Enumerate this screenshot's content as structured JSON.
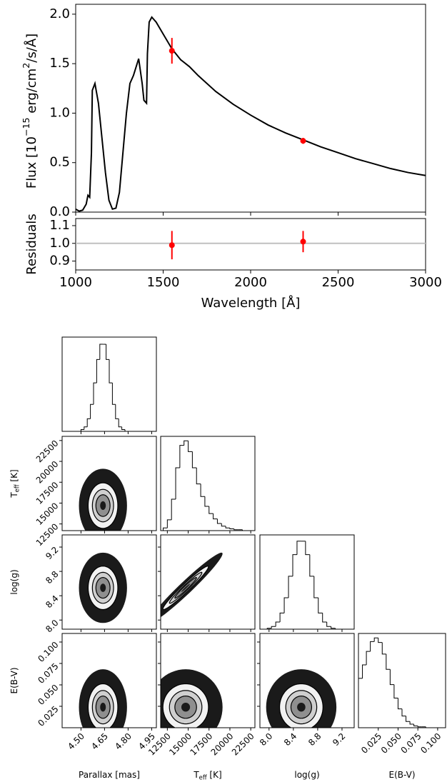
{
  "chart_data": [
    {
      "type": "line",
      "ylabel": [
        "Flux [10",
        {
          "sup": "−15"
        },
        " erg/cm",
        {
          "sup": "2"
        },
        "/s/Å]"
      ],
      "x": [
        1000,
        1020,
        1040,
        1060,
        1070,
        1080,
        1090,
        1095,
        1110,
        1130,
        1150,
        1170,
        1190,
        1210,
        1230,
        1250,
        1270,
        1290,
        1310,
        1330,
        1360,
        1380,
        1390,
        1405,
        1410,
        1420,
        1435,
        1460,
        1500,
        1550,
        1600,
        1650,
        1700,
        1800,
        1900,
        2000,
        2100,
        2200,
        2300,
        2400,
        2500,
        2600,
        2700,
        2800,
        2900,
        3000
      ],
      "series": [
        {
          "color": "#000000",
          "values": [
            0.03,
            0.01,
            0.02,
            0.08,
            0.17,
            0.15,
            0.6,
            1.23,
            1.3,
            1.1,
            0.75,
            0.4,
            0.12,
            0.03,
            0.04,
            0.2,
            0.6,
            1.0,
            1.3,
            1.38,
            1.55,
            1.3,
            1.13,
            1.1,
            1.6,
            1.92,
            1.97,
            1.92,
            1.8,
            1.65,
            1.54,
            1.47,
            1.38,
            1.22,
            1.09,
            0.98,
            0.88,
            0.8,
            0.73,
            0.66,
            0.6,
            0.54,
            0.49,
            0.44,
            0.4,
            0.37
          ]
        }
      ],
      "points": {
        "x": [
          1550,
          2300
        ],
        "values": [
          1.63,
          0.72
        ],
        "errors": [
          0.13,
          0.03
        ],
        "color": "#ff0000"
      },
      "ylim": [
        0,
        2.1
      ],
      "yticks": [
        {
          "value": 0,
          "label": "0.0"
        },
        {
          "value": 0.5,
          "label": "0.5"
        },
        {
          "value": 1,
          "label": "1.0"
        },
        {
          "value": 1.5,
          "label": "1.5"
        },
        {
          "value": 2,
          "label": "2.0"
        }
      ]
    },
    {
      "type": "errorbar",
      "ylabel": "Residuals",
      "xlabel": "Wavelength [Å]",
      "x": [
        1550,
        2300
      ],
      "values": [
        0.99,
        1.01
      ],
      "errors": [
        0.08,
        0.06
      ],
      "color": "#ff0000",
      "reference": 1,
      "reference_color": "#c0c0c0",
      "xlim": [
        1000,
        3000
      ],
      "xticks": [
        1000,
        1500,
        2000,
        2500,
        3000
      ],
      "ylim": [
        0.85,
        1.14
      ],
      "yticks": [
        {
          "value": 0.9,
          "label": "0.9"
        },
        {
          "value": 1,
          "label": "1.0"
        },
        {
          "value": 1.1,
          "label": "1.1"
        }
      ]
    },
    {
      "type": "corner",
      "params": [
        {
          "label": [
            "Parallax [mas]"
          ],
          "xlim": [
            4.38,
            4.98
          ],
          "mean": 4.64,
          "sd": 0.045,
          "ticks": [
            {
              "value": 4.5,
              "label": "4.50"
            },
            4.65,
            {
              "value": 4.8,
              "label": "4.80"
            },
            4.95
          ],
          "hist": {
            "ylim": [
              0,
              105
            ],
            "bins": [
              4.44,
              4.46,
              4.48,
              4.5,
              4.52,
              4.54,
              4.56,
              4.58,
              4.6,
              4.62,
              4.64,
              4.66,
              4.68,
              4.7,
              4.72,
              4.74,
              4.76,
              4.78,
              4.8,
              4.82,
              4.84
            ],
            "counts": [
              0,
              0,
              0,
              2,
              5,
              14,
              30,
              54,
              80,
              97,
              97,
              80,
              54,
              30,
              14,
              5,
              2,
              0,
              0,
              0
            ]
          }
        },
        {
          "label": [
            "T",
            {
              "sub": "eff"
            },
            " [K]"
          ],
          "xlim": [
            11700,
            23000
          ],
          "mean": 14700,
          "sd": 1300,
          "ticks": [
            12500,
            15000,
            17500,
            20000,
            22500
          ],
          "hist": {
            "ylim": [
              0,
              105
            ],
            "bins": [
              12000,
              12500,
              13000,
              13500,
              14000,
              14500,
              15000,
              15500,
              16000,
              16500,
              17000,
              17500,
              18000,
              18500,
              19000,
              19500,
              20000,
              20500,
              21000,
              21500,
              22000
            ],
            "counts": [
              3,
              12,
              35,
              70,
              95,
              100,
              88,
              70,
              52,
              38,
              27,
              19,
              13,
              8,
              5,
              3,
              2,
              1,
              1,
              0
            ]
          }
        },
        {
          "label": [
            "log(g)"
          ],
          "xlim": [
            7.85,
            9.4
          ],
          "mean": 8.53,
          "sd": 0.17,
          "ticks": [
            {
              "value": 8,
              "label": "8.0"
            },
            8.4,
            8.8,
            9.2
          ],
          "hist": {
            "ylim": [
              0,
              105
            ],
            "bins": [
              7.9,
              7.97,
              8.04,
              8.11,
              8.18,
              8.25,
              8.32,
              8.39,
              8.46,
              8.53,
              8.6,
              8.67,
              8.74,
              8.81,
              8.88,
              8.95,
              9.02,
              9.09,
              9.16,
              9.23,
              9.3
            ],
            "counts": [
              0,
              1,
              3,
              8,
              18,
              35,
              59,
              83,
              98,
              98,
              83,
              59,
              35,
              18,
              8,
              3,
              1,
              0,
              0,
              0
            ]
          }
        },
        {
          "label": [
            "E(B-V)"
          ],
          "xlim": [
            0,
            0.11
          ],
          "mean": 0.024,
          "sd": 0.013,
          "ticks": [
            0.025,
            {
              "value": 0.05,
              "label": "0.050"
            },
            0.075,
            {
              "value": 0.1,
              "label": "0.100"
            }
          ],
          "hist": {
            "ylim": [
              0,
              105
            ],
            "bins": [
              0,
              0.005,
              0.01,
              0.015,
              0.02,
              0.025,
              0.03,
              0.035,
              0.04,
              0.045,
              0.05,
              0.055,
              0.06,
              0.065,
              0.07,
              0.075,
              0.08,
              0.085,
              0.09,
              0.095,
              0.1
            ],
            "counts": [
              55,
              70,
              85,
              96,
              100,
              95,
              82,
              65,
              48,
              33,
              21,
              13,
              7,
              4,
              2,
              1,
              1,
              0,
              0,
              0
            ]
          }
        }
      ],
      "correlations": [
        0,
        0,
        0.97,
        0,
        0,
        0
      ]
    }
  ]
}
